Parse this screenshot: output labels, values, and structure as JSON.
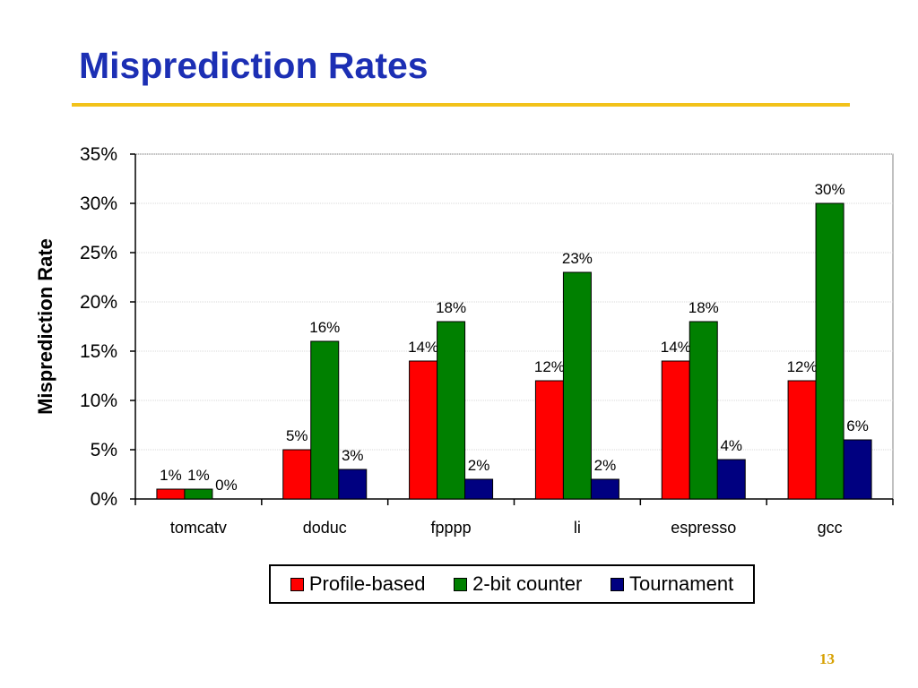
{
  "slide": {
    "title": "Misprediction Rates",
    "page_number": "13"
  },
  "chart_data": {
    "type": "bar",
    "title": "",
    "xlabel": "",
    "ylabel": "Misprediction Rate",
    "ylim": [
      0,
      35
    ],
    "yticks": [
      0,
      5,
      10,
      15,
      20,
      25,
      30,
      35
    ],
    "ytick_labels": [
      "0%",
      "5%",
      "10%",
      "15%",
      "20%",
      "25%",
      "30%",
      "35%"
    ],
    "grid": true,
    "legend_position": "bottom",
    "categories": [
      "tomcatv",
      "doduc",
      "fpppp",
      "li",
      "espresso",
      "gcc"
    ],
    "series": [
      {
        "name": "Profile-based",
        "color": "#ff0000",
        "values": [
          1,
          5,
          14,
          12,
          14,
          12
        ]
      },
      {
        "name": "2-bit counter",
        "color": "#008000",
        "values": [
          1,
          16,
          18,
          23,
          18,
          30
        ]
      },
      {
        "name": "Tournament",
        "color": "#000080",
        "values": [
          0,
          3,
          2,
          2,
          4,
          6
        ]
      }
    ],
    "data_label_suffix": "%"
  }
}
